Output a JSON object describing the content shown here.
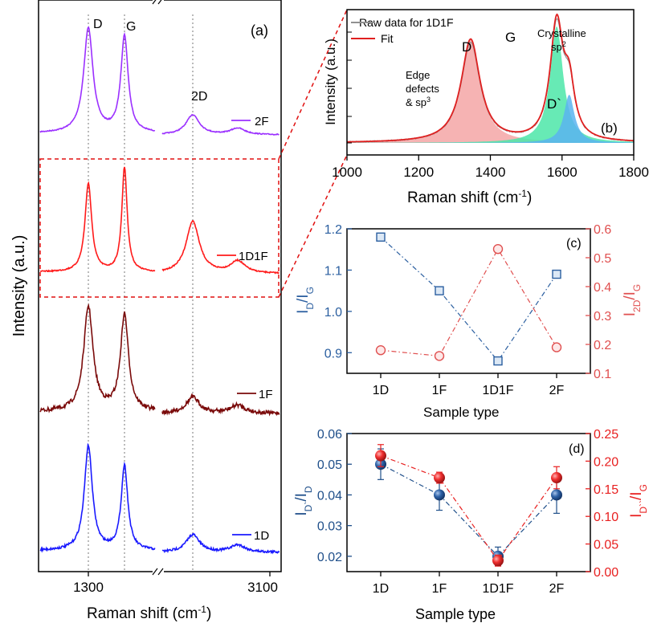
{
  "panel_a": {
    "label": "(a)",
    "ylabel": "Intensity (a.u.)",
    "xlabel": "Raman shift (cm",
    "xlabel_sup": "-1",
    "xlabel_end": ")",
    "xticks": [
      "1300",
      "3100"
    ],
    "peak_labels": {
      "D": "D",
      "G": "G",
      "2D": "2D"
    },
    "traces": [
      {
        "name": "2F",
        "color": "#9b30ff"
      },
      {
        "name": "1D1F",
        "color": "#ff1a1a"
      },
      {
        "name": "1F",
        "color": "#7a0a0a"
      },
      {
        "name": "1D",
        "color": "#1a1aff"
      }
    ]
  },
  "panel_b": {
    "label": "(b)",
    "legend": [
      "Raw data for 1D1F",
      "Fit"
    ],
    "legend_colors": [
      "#909090",
      "#e02020"
    ],
    "ylabel": "Intensity (a.u.)",
    "xlabel": "Raman shift (cm",
    "xlabel_sup": "-1",
    "xlabel_end": ")",
    "xlim": [
      1000,
      1800
    ],
    "xticks": [
      "1000",
      "1200",
      "1400",
      "1600",
      "1800"
    ],
    "annotations": {
      "D": "D",
      "G": "G",
      "Dp": "D`",
      "edge1": "Edge",
      "edge2": "defects",
      "edge3": "& sp",
      "edge_sup": "3",
      "cryst1": "Crystalline",
      "cryst2": "sp",
      "cryst_sup": "2"
    },
    "fill_colors": {
      "D": "#f4a6a6",
      "G": "#4ce6a8",
      "Dp": "#5ab4f0"
    }
  },
  "chart_data": [
    {
      "type": "scatter",
      "label": "(c)",
      "categories": [
        "1D",
        "1F",
        "1D1F",
        "2F"
      ],
      "xlabel": "Sample type",
      "series": [
        {
          "name": "ID/IG",
          "axis": "left",
          "color": "#2b5fa0",
          "marker": "square",
          "values": [
            1.18,
            1.05,
            0.88,
            1.09
          ]
        },
        {
          "name": "I2D/IG",
          "axis": "right",
          "color": "#e05050",
          "marker": "circle",
          "values": [
            0.18,
            0.16,
            0.53,
            0.19
          ]
        }
      ],
      "ylim_left": [
        0.85,
        1.2
      ],
      "yticks_left": [
        "0.9",
        "1.0",
        "1.1",
        "1.2"
      ],
      "ylim_right": [
        0.1,
        0.6
      ],
      "yticks_right": [
        "0.1",
        "0.2",
        "0.3",
        "0.4",
        "0.5",
        "0.6"
      ],
      "ylabel_left": {
        "main": "I",
        "sub1": "D",
        "slash": "/I",
        "sub2": "G"
      },
      "ylabel_right": {
        "main": "I",
        "sub1": "2D",
        "slash": "/I",
        "sub2": "G"
      }
    },
    {
      "type": "scatter",
      "label": "(d)",
      "categories": [
        "1D",
        "1F",
        "1D1F",
        "2F"
      ],
      "xlabel": "Sample type",
      "series": [
        {
          "name": "ID`/ID",
          "axis": "left",
          "color": "#1f4f8a",
          "marker": "sphere",
          "values": [
            0.05,
            0.04,
            0.02,
            0.04
          ],
          "errors": [
            0.005,
            0.005,
            0.003,
            0.006
          ]
        },
        {
          "name": "ID``/IG",
          "axis": "right",
          "color": "#e82020",
          "marker": "sphere",
          "values": [
            0.21,
            0.17,
            0.02,
            0.17
          ],
          "errors": [
            0.02,
            0.01,
            0.01,
            0.02
          ]
        }
      ],
      "ylim_left": [
        0.015,
        0.06
      ],
      "yticks_left": [
        "0.02",
        "0.03",
        "0.04",
        "0.05",
        "0.06"
      ],
      "ylim_right": [
        0.0,
        0.25
      ],
      "yticks_right": [
        "0.00",
        "0.05",
        "0.10",
        "0.15",
        "0.20",
        "0.25"
      ],
      "ylabel_left": {
        "main": "I",
        "sub1": "D`",
        "slash": "/I",
        "sub2": "D"
      },
      "ylabel_right": {
        "main": "I",
        "sub1": "D``",
        "slash": "/I",
        "sub2": "G"
      }
    }
  ]
}
